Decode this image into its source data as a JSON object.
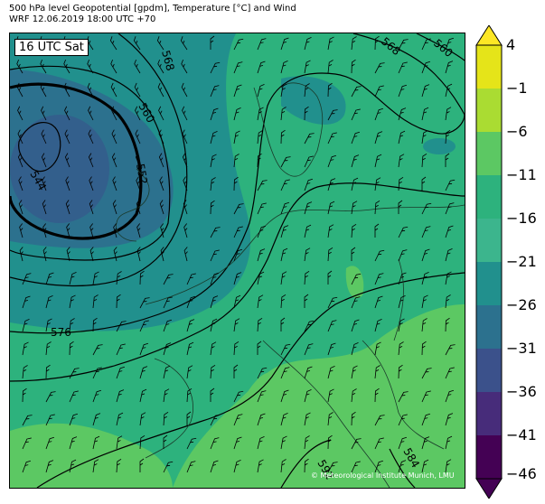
{
  "header": {
    "line1": "500 hPa level Geopotential [gpdm], Temperature [°C] and Wind",
    "line2": "WRF 12.06.2019 18:00 UTC +70"
  },
  "map": {
    "time_label": "16 UTC Sat",
    "copyright": "© Meteorological Institute Munich, LMU",
    "contour_labels": [
      "544",
      "552",
      "560",
      "568",
      "576",
      "584",
      "592",
      "560",
      "568"
    ],
    "colors": {
      "t_-46_-41": "#440154",
      "t_-41_-36": "#472c7a",
      "t_-36_-31": "#3b518b",
      "t_-31_-26": "#2c718e",
      "t_-26_-21": "#21908d",
      "t_-21_-16": "#27ad81",
      "t_-16_-11": "#2db27d",
      "t_-11_-6": "#5cc863",
      "t_-6_-1": "#aadc32",
      "t_-1_4": "#e5e419",
      "t_over_4": "#fde725"
    }
  },
  "colorbar": {
    "ticks": [
      "4",
      "−1",
      "−6",
      "−11",
      "−16",
      "−21",
      "−26",
      "−31",
      "−36",
      "−41",
      "−46"
    ]
  }
}
